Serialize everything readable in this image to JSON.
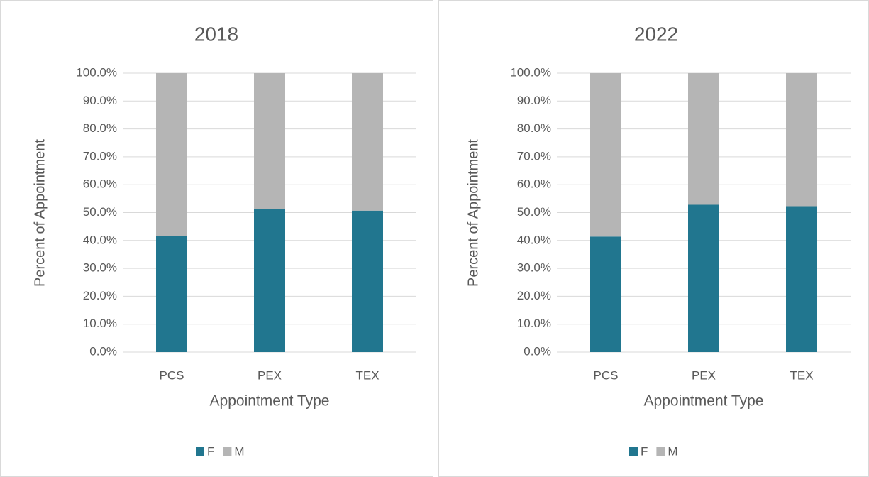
{
  "chart_data": [
    {
      "type": "stacked_bar",
      "title": "2018",
      "x_label": "Appointment Type",
      "y_label": "Percent of Appointment",
      "categories": [
        "PCS",
        "PEX",
        "TEX"
      ],
      "series": [
        {
          "name": "F",
          "color": "#21768f",
          "values": [
            41.5,
            51.3,
            50.7
          ]
        },
        {
          "name": "M",
          "color": "#b5b5b5",
          "values": [
            58.5,
            48.7,
            49.3
          ]
        }
      ],
      "ylim": [
        0,
        100
      ],
      "yticks": [
        {
          "value": 0,
          "label": "0.0%"
        },
        {
          "value": 10,
          "label": "10.0%"
        },
        {
          "value": 20,
          "label": "20.0%"
        },
        {
          "value": 30,
          "label": "30.0%"
        },
        {
          "value": 40,
          "label": "40.0%"
        },
        {
          "value": 50,
          "label": "50.0%"
        },
        {
          "value": 60,
          "label": "60.0%"
        },
        {
          "value": 70,
          "label": "70.0%"
        },
        {
          "value": 80,
          "label": "80.0%"
        },
        {
          "value": 90,
          "label": "90.0%"
        },
        {
          "value": 100,
          "label": "100.0%"
        }
      ],
      "grid": true,
      "legend": "bottom"
    },
    {
      "type": "stacked_bar",
      "title": "2022",
      "x_label": "Appointment Type",
      "y_label": "Percent of Appointment",
      "categories": [
        "PCS",
        "PEX",
        "TEX"
      ],
      "series": [
        {
          "name": "F",
          "color": "#21768f",
          "values": [
            41.4,
            52.8,
            52.3
          ]
        },
        {
          "name": "M",
          "color": "#b5b5b5",
          "values": [
            58.6,
            47.2,
            47.7
          ]
        }
      ],
      "ylim": [
        0,
        100
      ],
      "yticks": [
        {
          "value": 0,
          "label": "0.0%"
        },
        {
          "value": 10,
          "label": "10.0%"
        },
        {
          "value": 20,
          "label": "20.0%"
        },
        {
          "value": 30,
          "label": "30.0%"
        },
        {
          "value": 40,
          "label": "40.0%"
        },
        {
          "value": 50,
          "label": "50.0%"
        },
        {
          "value": 60,
          "label": "60.0%"
        },
        {
          "value": 70,
          "label": "70.0%"
        },
        {
          "value": 80,
          "label": "80.0%"
        },
        {
          "value": 90,
          "label": "90.0%"
        },
        {
          "value": 100,
          "label": "100.0%"
        }
      ],
      "grid": true,
      "legend": "bottom"
    }
  ]
}
